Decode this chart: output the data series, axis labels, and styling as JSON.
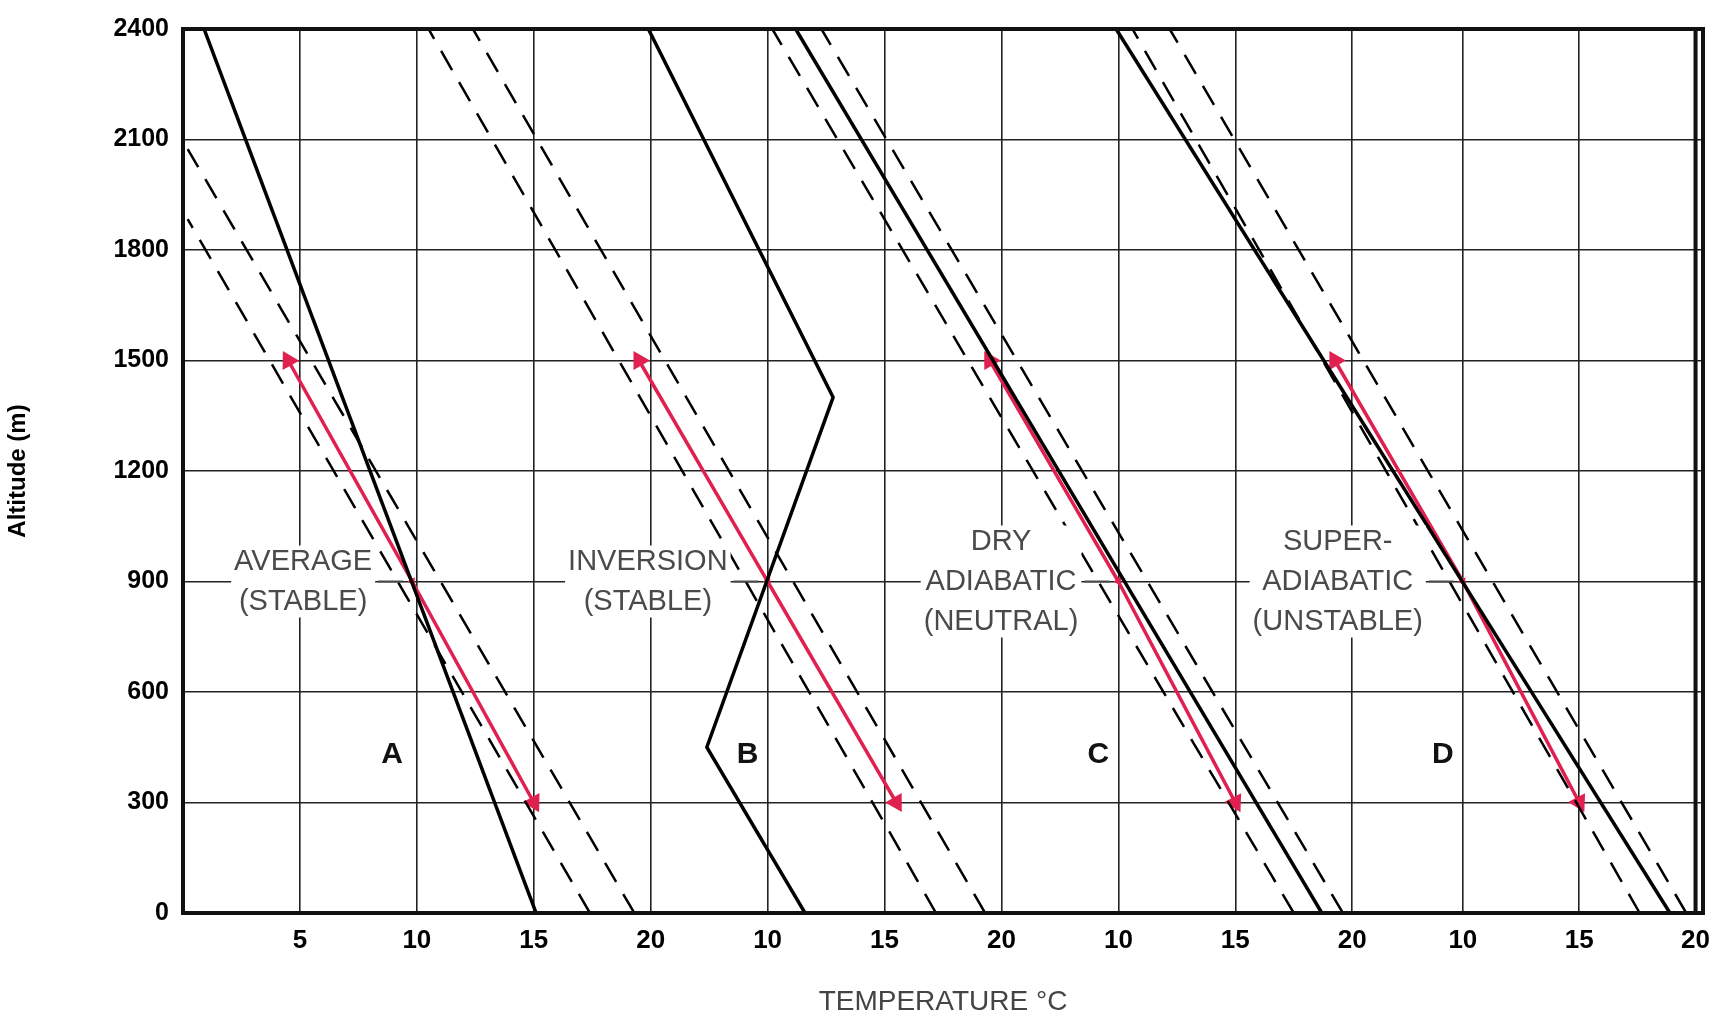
{
  "chart_data": [
    {
      "type": "line",
      "xlabel": "TEMPERATURE °C",
      "ylabel": "Altitude (m)",
      "xlim": [
        0,
        65
      ],
      "xticks": [
        5,
        10,
        15,
        20
      ],
      "ylim": [
        0,
        2400
      ],
      "yticks": [
        0,
        300,
        600,
        900,
        1200,
        1500,
        1800,
        2100,
        2400
      ],
      "grid": true,
      "series": [
        {
          "color": "#000000",
          "line_style": "solid",
          "x": [
            15.1,
            0.9
          ],
          "values": [
            0,
            2400
          ]
        },
        {
          "color": "#000000",
          "line_style": "dashed",
          "x": [
            17.4,
            0.2
          ],
          "values": [
            0,
            1884
          ]
        },
        {
          "color": "#000000",
          "line_style": "dashed",
          "x": [
            19.3,
            0.2
          ],
          "values": [
            0,
            2074
          ]
        },
        {
          "color": "#e0204f",
          "line_style": "solid",
          "marker": "triangle",
          "x": [
            4.5,
            9.8,
            15
          ],
          "values": [
            1500,
            900,
            300
          ]
        }
      ],
      "annotations": [
        "AVERAGE\n(STABLE)",
        "A"
      ]
    },
    {
      "type": "line",
      "xlim": [
        -15,
        50
      ],
      "xticks": [
        10,
        15,
        20
      ],
      "ylim": [
        0,
        2400
      ],
      "grid": "x",
      "tick_labels": "x",
      "series": [
        {
          "color": "#000000",
          "line_style": "solid",
          "x": [
            11.6,
            7.4,
            12.8,
            4.9
          ],
          "values": [
            0,
            450,
            1400,
            2400
          ]
        },
        {
          "color": "#000000",
          "line_style": "dashed",
          "x": [
            17.2,
            -4.5
          ],
          "values": [
            0,
            2400
          ]
        },
        {
          "color": "#000000",
          "line_style": "dashed",
          "x": [
            19.3,
            -2.6
          ],
          "values": [
            0,
            2400
          ]
        },
        {
          "color": "#e0204f",
          "line_style": "solid",
          "marker": "triangle",
          "x": [
            4.5,
            10,
            15.5
          ],
          "values": [
            1500,
            900,
            300
          ]
        }
      ],
      "annotations": [
        "INVERSION\n(STABLE)",
        "B"
      ]
    },
    {
      "type": "line",
      "xlim": [
        -30,
        35
      ],
      "xticks": [
        10,
        15,
        20
      ],
      "ylim": [
        0,
        2400
      ],
      "grid": "x",
      "tick_labels": "x",
      "series": [
        {
          "color": "#000000",
          "line_style": "solid",
          "x": [
            18.7,
            -3.8
          ],
          "values": [
            0,
            2400
          ]
        },
        {
          "color": "#000000",
          "line_style": "dashed",
          "x": [
            17.5,
            -4.8
          ],
          "values": [
            0,
            2400
          ]
        },
        {
          "color": "#000000",
          "line_style": "dashed",
          "x": [
            19.6,
            -2.7
          ],
          "values": [
            0,
            2400
          ]
        },
        {
          "color": "#e0204f",
          "line_style": "solid",
          "marker": "triangle",
          "x": [
            4.5,
            10,
            15
          ],
          "values": [
            1500,
            900,
            300
          ]
        }
      ],
      "annotations": [
        "DRY\nADIABATIC\n(NEUTRAL)",
        "C"
      ]
    },
    {
      "type": "line",
      "xlim": [
        -45,
        20
      ],
      "xticks": [
        10,
        15,
        20
      ],
      "ylim": [
        0,
        2400
      ],
      "grid": "x",
      "tick_labels": "x",
      "series": [
        {
          "color": "#000000",
          "line_style": "solid",
          "x": [
            18.9,
            -4.9
          ],
          "values": [
            0,
            2400
          ]
        },
        {
          "color": "#000000",
          "line_style": "dashed",
          "x": [
            17.6,
            -4.2
          ],
          "values": [
            0,
            2400
          ]
        },
        {
          "color": "#000000",
          "line_style": "dashed",
          "x": [
            19.6,
            -2.6
          ],
          "values": [
            0,
            2400
          ]
        },
        {
          "color": "#e0204f",
          "line_style": "solid",
          "marker": "triangle",
          "x": [
            4.5,
            10,
            15
          ],
          "values": [
            1500,
            900,
            300
          ]
        }
      ],
      "annotations": [
        "SUPER-\nADIABATIC\n(UNSTABLE)",
        "D"
      ]
    }
  ]
}
